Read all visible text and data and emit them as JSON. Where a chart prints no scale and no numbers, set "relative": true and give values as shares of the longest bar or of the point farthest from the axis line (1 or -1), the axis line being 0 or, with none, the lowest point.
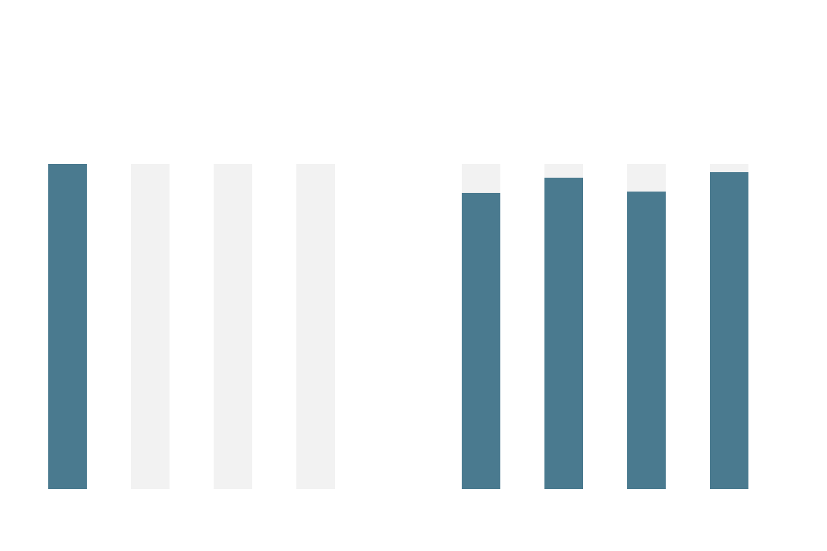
{
  "chart_data": [
    {
      "type": "bar",
      "relative": true,
      "stacked": true,
      "categories": [
        null,
        null,
        null,
        null
      ],
      "series": [
        {
          "color": "#4a7a8f",
          "values": [
            1,
            0,
            0,
            0
          ]
        },
        {
          "color": "#f2f2f2",
          "values": [
            0,
            1,
            1,
            1
          ]
        }
      ]
    },
    {
      "type": "bar",
      "relative": true,
      "stacked": true,
      "categories": [
        null,
        null,
        null,
        null
      ],
      "series": [
        {
          "color": "#4a7a8f",
          "values": [
            0.911,
            0.958,
            0.915,
            0.975
          ]
        },
        {
          "color": "#f2f2f2",
          "values": [
            0.089,
            0.042,
            0.085,
            0.025
          ]
        }
      ]
    }
  ]
}
